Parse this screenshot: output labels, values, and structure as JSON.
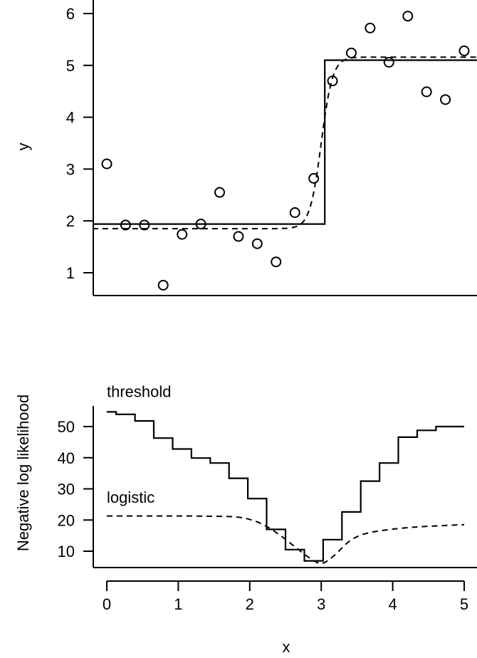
{
  "chart_data": [
    {
      "type": "scatter",
      "ylabel": "y",
      "yticks": [
        1,
        2,
        3,
        4,
        5,
        6
      ],
      "xlim": [
        0,
        5.3
      ],
      "ylim": [
        0.45,
        6.15
      ],
      "points": {
        "x": [
          0.0,
          0.263,
          0.526,
          0.789,
          1.053,
          1.316,
          1.579,
          1.842,
          2.105,
          2.368,
          2.632,
          2.895,
          3.158,
          3.421,
          3.684,
          3.947,
          4.211,
          4.474,
          4.737,
          5.0
        ],
        "y": [
          3.1,
          1.92,
          1.92,
          0.76,
          1.74,
          1.94,
          2.55,
          1.7,
          1.56,
          1.21,
          2.16,
          2.82,
          4.7,
          5.24,
          5.72,
          5.06,
          5.95,
          4.49,
          4.34,
          5.28
        ]
      },
      "threshold_fit": {
        "style": "solid",
        "x": [
          -0.2,
          3.05,
          3.05,
          5.3
        ],
        "y": [
          1.94,
          1.94,
          5.1,
          5.1
        ]
      },
      "logistic_fit": {
        "style": "dashed",
        "lower": 1.85,
        "upper": 5.16,
        "midpoint": 3.0,
        "scale": 0.08
      }
    },
    {
      "type": "line",
      "xlabel": "x",
      "ylabel": "Negative log likelihood",
      "xticks": [
        0,
        1,
        2,
        3,
        4,
        5
      ],
      "yticks": [
        10,
        20,
        30,
        40,
        50
      ],
      "xlim": [
        -0.2,
        5.3
      ],
      "ylim": [
        5,
        57
      ],
      "annotations": [
        {
          "text": "threshold",
          "x": 0.0,
          "y": 59.5
        },
        {
          "text": "logistic",
          "x": 0.0,
          "y": 25.5
        }
      ],
      "series": [
        {
          "style": "step",
          "x": [
            0.0,
            0.263,
            0.526,
            0.789,
            1.053,
            1.316,
            1.579,
            1.842,
            2.105,
            2.368,
            2.632,
            2.895,
            3.158,
            3.421,
            3.684,
            3.947,
            4.211,
            4.474,
            4.737,
            5.0
          ],
          "y": [
            54.7,
            53.9,
            51.8,
            46.3,
            42.8,
            39.9,
            38.3,
            33.4,
            26.9,
            17.0,
            10.5,
            6.9,
            13.7,
            22.6,
            32.5,
            38.3,
            46.6,
            48.8,
            50.0,
            50.0
          ]
        },
        {
          "style": "dashed",
          "x": [
            0.0,
            0.5,
            1.0,
            1.5,
            1.8,
            2.0,
            2.2,
            2.4,
            2.6,
            2.8,
            2.95,
            3.05,
            3.2,
            3.4,
            3.6,
            3.9,
            4.3,
            4.7,
            5.0
          ],
          "y": [
            21.3,
            21.3,
            21.3,
            21.2,
            21.0,
            20.2,
            18.4,
            15.5,
            12.0,
            8.4,
            6.3,
            6.4,
            9.0,
            13.3,
            15.5,
            16.8,
            17.7,
            18.2,
            18.5
          ]
        }
      ]
    }
  ]
}
